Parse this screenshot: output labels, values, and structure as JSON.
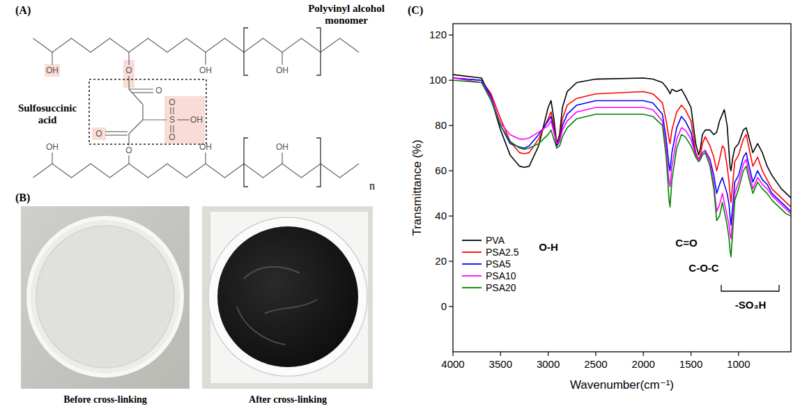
{
  "diagram": {
    "panel_label": "(A)",
    "title": "Polyvinyl alcohol monomer",
    "crosslinker": "Sulfosuccinic acid",
    "atoms": [
      "OH",
      "O",
      "OH",
      "OH",
      "O",
      "S",
      "O",
      "O",
      "OH",
      "O",
      "O",
      "OH",
      "OH",
      "OH"
    ],
    "repeat_label": "n"
  },
  "photos": {
    "panel_label": "(B)",
    "captions": [
      "Before cross-linking",
      "After cross-linking"
    ]
  },
  "chart_panel_label": "(C)",
  "chart_data": {
    "type": "line",
    "x_label": "Wavenumber(cm⁻¹)",
    "y_label": "Transmittance (%)",
    "x": [
      4000,
      3700,
      3600,
      3500,
      3400,
      3300,
      3250,
      3200,
      3100,
      3000,
      2970,
      2940,
      2910,
      2880,
      2850,
      2800,
      2700,
      2500,
      2000,
      1900,
      1800,
      1760,
      1730,
      1720,
      1700,
      1650,
      1600,
      1560,
      1500,
      1450,
      1420,
      1400,
      1380,
      1350,
      1300,
      1260,
      1230,
      1200,
      1170,
      1150,
      1120,
      1100,
      1090,
      1080,
      1060,
      1040,
      1000,
      950,
      920,
      900,
      850,
      800,
      750,
      700,
      650,
      600,
      550,
      500,
      450
    ],
    "series": [
      {
        "name": "PVA",
        "color": "#000000",
        "values": [
          102.5,
          101,
          92,
          78,
          67,
          62,
          61.5,
          62,
          71,
          88,
          91,
          83,
          72,
          76,
          88,
          95,
          99,
          100.5,
          101,
          100.5,
          99,
          97,
          95,
          94,
          96,
          95,
          96,
          93,
          88,
          72,
          67,
          70,
          76,
          78,
          78,
          76,
          77,
          82,
          85,
          87,
          80,
          68,
          62,
          60,
          66,
          70,
          72,
          78,
          79,
          76,
          68,
          72,
          68,
          62,
          58,
          55,
          52,
          50,
          48
        ]
      },
      {
        "name": "PSA2.5",
        "color": "#ff0000",
        "values": [
          101,
          100,
          94,
          83,
          73,
          68,
          67.5,
          68,
          74,
          83,
          86,
          80,
          71,
          74,
          83,
          89,
          92,
          94,
          95,
          94,
          90,
          82,
          74,
          72,
          78,
          86,
          89,
          87,
          82,
          68,
          65,
          67,
          72,
          75,
          71,
          66,
          60,
          65,
          71,
          70,
          62,
          55,
          50,
          46,
          55,
          64,
          67,
          74,
          76,
          72,
          62,
          66,
          60,
          56,
          52,
          50,
          48,
          46,
          44
        ]
      },
      {
        "name": "PSA5",
        "color": "#0000ff",
        "values": [
          101,
          100,
          93,
          80,
          72,
          70.5,
          70,
          71,
          76,
          82,
          84,
          78,
          71,
          73,
          80,
          85,
          89,
          91,
          91,
          90,
          85,
          74,
          62,
          60,
          68,
          79,
          84,
          82,
          77,
          67,
          65,
          66,
          68,
          69,
          65,
          58,
          50,
          54,
          57,
          54,
          50,
          45,
          40,
          36,
          45,
          55,
          58,
          66,
          68,
          64,
          55,
          60,
          56,
          54,
          50,
          48,
          46,
          44,
          42
        ]
      },
      {
        "name": "PSA10",
        "color": "#ff00ff",
        "values": [
          101,
          99,
          92,
          81,
          76,
          74,
          74,
          74.5,
          77,
          80,
          82,
          77,
          72,
          73,
          78,
          82,
          86,
          88,
          88,
          87,
          82,
          70,
          55,
          53,
          62,
          74,
          79,
          78,
          74,
          67,
          65,
          66,
          68,
          69,
          64,
          54,
          42,
          45,
          50,
          46,
          40,
          36,
          32,
          30,
          40,
          50,
          55,
          63,
          65,
          61,
          52,
          57,
          54,
          52,
          49,
          47,
          45,
          43,
          41
        ]
      },
      {
        "name": "PSA20",
        "color": "#008000",
        "values": [
          100,
          99,
          91,
          80,
          73,
          70,
          69.5,
          70,
          72,
          76,
          78,
          74,
          70,
          71,
          75,
          79,
          83,
          85,
          85,
          84,
          80,
          66,
          47,
          44,
          56,
          70,
          76,
          75,
          71,
          66,
          64,
          65,
          67,
          68,
          62,
          52,
          38,
          40,
          46,
          42,
          36,
          30,
          25,
          22,
          34,
          47,
          52,
          60,
          62,
          58,
          50,
          55,
          52,
          50,
          47,
          45,
          43,
          41,
          40
        ]
      }
    ],
    "xlim": [
      4000,
      450
    ],
    "ylim": [
      -20,
      125
    ],
    "xticks": [
      4000,
      3500,
      3000,
      2500,
      2000,
      1500,
      1000
    ],
    "yticks": [
      0,
      20,
      40,
      60,
      80,
      100,
      120
    ],
    "grid": false,
    "legend": "left",
    "annotations": [
      "O-H",
      "C=O",
      "C-O-C",
      "-SO₃H"
    ]
  }
}
